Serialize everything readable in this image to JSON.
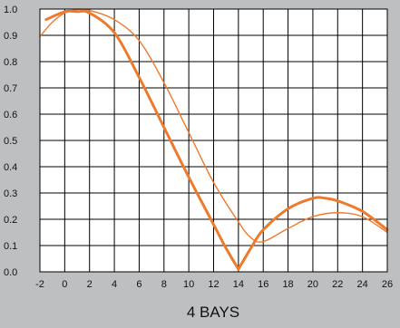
{
  "chart_data": {
    "type": "line",
    "title": "",
    "xlabel": "4 BAYS",
    "ylabel": "",
    "xlim": [
      -2,
      26
    ],
    "ylim": [
      0,
      1
    ],
    "grid": true,
    "legend": "none",
    "x_ticks": [
      "-2",
      "0",
      "2",
      "4",
      "6",
      "8",
      "10",
      "12",
      "14",
      "16",
      "18",
      "20",
      "22",
      "24",
      "26"
    ],
    "y_ticks": [
      "0.0",
      "0.1",
      "0.2",
      "0.3",
      "0.4",
      "0.5",
      "0.6",
      "0.7",
      "0.8",
      "0.9",
      "1.0"
    ],
    "colors": {
      "background": "#bebfc1",
      "plot_area": "#ffffff",
      "grid": "#000000",
      "series": "#ee7a2e"
    },
    "series": [
      {
        "points": [
          [
            -1.5,
            0.96
          ],
          [
            0,
            0.99
          ],
          [
            1,
            0.99
          ],
          [
            2,
            0.985
          ],
          [
            4,
            0.91
          ],
          [
            6,
            0.74
          ],
          [
            8,
            0.55
          ],
          [
            10,
            0.36
          ],
          [
            12,
            0.18
          ],
          [
            13,
            0.09
          ],
          [
            14,
            0.01
          ],
          [
            15,
            0.09
          ],
          [
            16,
            0.16
          ],
          [
            18,
            0.24
          ],
          [
            20,
            0.28
          ],
          [
            21,
            0.28
          ],
          [
            22,
            0.27
          ],
          [
            24,
            0.23
          ],
          [
            26,
            0.16
          ]
        ]
      },
      {
        "points": [
          [
            -2,
            0.895
          ],
          [
            -1,
            0.95
          ],
          [
            0,
            0.985
          ],
          [
            1,
            0.998
          ],
          [
            2,
            0.995
          ],
          [
            4,
            0.96
          ],
          [
            6,
            0.88
          ],
          [
            8,
            0.72
          ],
          [
            10,
            0.53
          ],
          [
            12,
            0.34
          ],
          [
            14,
            0.19
          ],
          [
            15,
            0.13
          ],
          [
            16,
            0.115
          ],
          [
            18,
            0.165
          ],
          [
            20,
            0.21
          ],
          [
            22,
            0.225
          ],
          [
            24,
            0.21
          ],
          [
            26,
            0.15
          ]
        ]
      }
    ]
  }
}
